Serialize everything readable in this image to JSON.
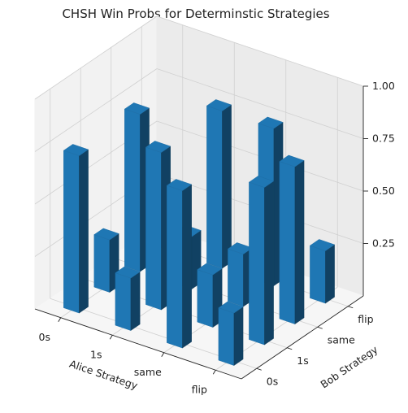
{
  "chart_data": {
    "type": "bar3d",
    "title": "CHSH Win Probs for Determinstic Strategies",
    "xlabel": "Alice Strategy",
    "ylabel": "Bob Strategy",
    "zlabel": "",
    "x_categories": [
      "0s",
      "1s",
      "same",
      "flip"
    ],
    "y_categories": [
      "0s",
      "1s",
      "same",
      "flip"
    ],
    "zlim": [
      0,
      1
    ],
    "z_ticks": [
      "0.25",
      "0.50",
      "0.75",
      "1.00"
    ],
    "grid": true,
    "bar_color": "#1f77b4",
    "bars": [
      {
        "alice": "0s",
        "bob": "0s",
        "value": 0.75
      },
      {
        "alice": "0s",
        "bob": "1s",
        "value": 0.25
      },
      {
        "alice": "0s",
        "bob": "same",
        "value": 0.75
      },
      {
        "alice": "0s",
        "bob": "flip",
        "value": 0.25
      },
      {
        "alice": "1s",
        "bob": "0s",
        "value": 0.25
      },
      {
        "alice": "1s",
        "bob": "1s",
        "value": 0.75
      },
      {
        "alice": "1s",
        "bob": "same",
        "value": 0.25
      },
      {
        "alice": "1s",
        "bob": "flip",
        "value": 0.75
      },
      {
        "alice": "same",
        "bob": "0s",
        "value": 0.75
      },
      {
        "alice": "same",
        "bob": "1s",
        "value": 0.25
      },
      {
        "alice": "same",
        "bob": "same",
        "value": 0.25
      },
      {
        "alice": "same",
        "bob": "flip",
        "value": 0.75
      },
      {
        "alice": "flip",
        "bob": "0s",
        "value": 0.25
      },
      {
        "alice": "flip",
        "bob": "1s",
        "value": 0.75
      },
      {
        "alice": "flip",
        "bob": "same",
        "value": 0.75
      },
      {
        "alice": "flip",
        "bob": "flip",
        "value": 0.25
      }
    ]
  }
}
